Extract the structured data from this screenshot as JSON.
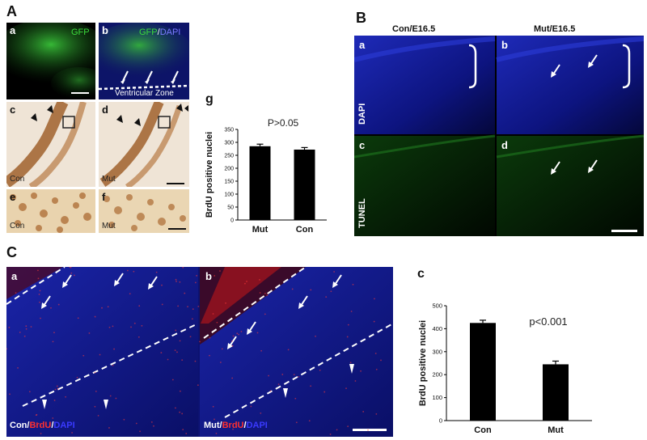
{
  "panels": {
    "A": {
      "letter": "A",
      "a": {
        "letter": "a",
        "label": "GFP"
      },
      "b": {
        "letter": "b",
        "label_gfp": "GFP",
        "label_sep": "/",
        "label_dapi": "DAPI",
        "zone": "Ventricular Zone"
      },
      "c": {
        "letter": "c",
        "cond": "Con"
      },
      "d": {
        "letter": "d",
        "cond": "Mut"
      },
      "e": {
        "letter": "e",
        "cond": "Con"
      },
      "f": {
        "letter": "f",
        "cond": "Mut"
      },
      "g": {
        "letter": "g"
      }
    },
    "B": {
      "letter": "B",
      "col_con": "Con/E16.5",
      "col_mut": "Mut/E16.5",
      "row_dapi": "DAPI",
      "row_tunel": "TUNEL",
      "a": "a",
      "b": "b",
      "c": "c",
      "d": "d"
    },
    "C": {
      "letter": "C",
      "a": {
        "letter": "a",
        "cond": "Con/",
        "stain1": "BrdU",
        "sep": "/",
        "stain2": "DAPI"
      },
      "b": {
        "letter": "b",
        "cond": "Mut/",
        "stain1": "BrdU",
        "sep": "/",
        "stain2": "DAPI"
      },
      "c": {
        "letter": "c"
      }
    }
  },
  "colors": {
    "dapi_blue": "#1a1a8c",
    "gfp_green": "#2fbf2f",
    "brdu_red": "#e02020",
    "bar": "#000000",
    "ihc_brown": "#a0622d",
    "tissue_bg": "#efe6da"
  },
  "chart_data": [
    {
      "type": "bar",
      "title": "P>0.05",
      "categories": [
        "Mut",
        "Con"
      ],
      "values": [
        285,
        272
      ],
      "errors": [
        8,
        8
      ],
      "ylabel": "BrdU positive nuclei",
      "xlabel": "",
      "ylim": [
        0,
        350
      ],
      "yticks": [
        0,
        50,
        100,
        150,
        200,
        250,
        300,
        350
      ],
      "grid": false
    },
    {
      "type": "bar",
      "title": "p<0.001",
      "categories": [
        "Con",
        "Mut"
      ],
      "values": [
        425,
        245
      ],
      "errors": [
        12,
        14
      ],
      "ylabel": "BrdU positive nuclei",
      "xlabel": "",
      "ylim": [
        0,
        500
      ],
      "yticks": [
        0,
        100,
        200,
        300,
        400,
        500
      ],
      "grid": false
    }
  ]
}
